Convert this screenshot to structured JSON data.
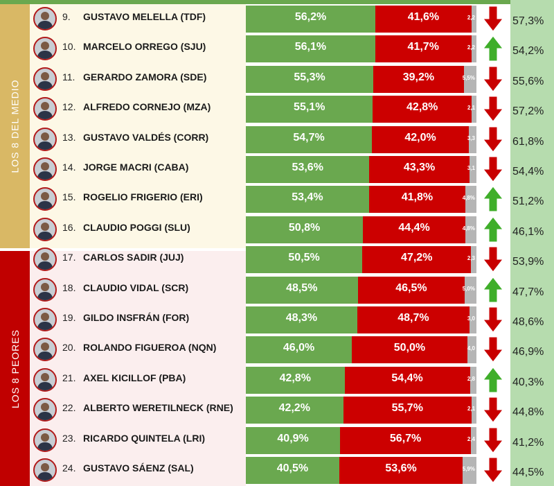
{
  "chart_data": {
    "type": "bar",
    "orientation": "horizontal-stacked",
    "groups": [
      {
        "label": "LOS 8 DEL MEDIO",
        "color": "#d9b865"
      },
      {
        "label": "LOS 8 PEORES",
        "color": "#c00000"
      }
    ],
    "series": [
      {
        "color": "#6aa84f"
      },
      {
        "color": "#cc0000"
      },
      {
        "color": "#b5b5b5"
      }
    ],
    "rows": [
      {
        "rank": "9.",
        "name": "GUSTAVO MELELLA (TDF)",
        "green": 56.2,
        "green_label": "56,2%",
        "red": 41.6,
        "red_label": "41,6%",
        "gray": 2.2,
        "gray_label": "2,2",
        "trend": "down",
        "prev_label": "57,3%",
        "group": 0
      },
      {
        "rank": "10.",
        "name": "MARCELO ORREGO (SJU)",
        "green": 56.1,
        "green_label": "56,1%",
        "red": 41.7,
        "red_label": "41,7%",
        "gray": 2.2,
        "gray_label": "2,2",
        "trend": "up",
        "prev_label": "54,2%",
        "group": 0
      },
      {
        "rank": "11.",
        "name": "GERARDO ZAMORA (SDE)",
        "green": 55.3,
        "green_label": "55,3%",
        "red": 39.2,
        "red_label": "39,2%",
        "gray": 5.5,
        "gray_label": "5,5%",
        "trend": "down",
        "prev_label": "55,6%",
        "group": 0
      },
      {
        "rank": "12.",
        "name": "ALFREDO CORNEJO (MZA)",
        "green": 55.1,
        "green_label": "55,1%",
        "red": 42.8,
        "red_label": "42,8%",
        "gray": 2.1,
        "gray_label": "2,1",
        "trend": "down",
        "prev_label": "57,2%",
        "group": 0
      },
      {
        "rank": "13.",
        "name": "GUSTAVO VALDÉS (CORR)",
        "green": 54.7,
        "green_label": "54,7%",
        "red": 42.0,
        "red_label": "42,0%",
        "gray": 3.3,
        "gray_label": "3,3",
        "trend": "down",
        "prev_label": "61,8%",
        "group": 0
      },
      {
        "rank": "14.",
        "name": "JORGE MACRI (CABA)",
        "green": 53.6,
        "green_label": "53,6%",
        "red": 43.3,
        "red_label": "43,3%",
        "gray": 3.1,
        "gray_label": "3,1",
        "trend": "down",
        "prev_label": "54,4%",
        "group": 0
      },
      {
        "rank": "15.",
        "name": "ROGELIO FRIGERIO (ERI)",
        "green": 53.4,
        "green_label": "53,4%",
        "red": 41.8,
        "red_label": "41,8%",
        "gray": 4.8,
        "gray_label": "4,8%",
        "trend": "up",
        "prev_label": "51,2%",
        "group": 0
      },
      {
        "rank": "16.",
        "name": "CLAUDIO POGGI (SLU)",
        "green": 50.8,
        "green_label": "50,8%",
        "red": 44.4,
        "red_label": "44,4%",
        "gray": 4.8,
        "gray_label": "4,8%",
        "trend": "up",
        "prev_label": "46,1%",
        "group": 0
      },
      {
        "rank": "17.",
        "name": "CARLOS SADIR (JUJ)",
        "green": 50.5,
        "green_label": "50,5%",
        "red": 47.2,
        "red_label": "47,2%",
        "gray": 2.3,
        "gray_label": "2,3",
        "trend": "down",
        "prev_label": "53,9%",
        "group": 1
      },
      {
        "rank": "18.",
        "name": "CLAUDIO VIDAL (SCR)",
        "green": 48.5,
        "green_label": "48,5%",
        "red": 46.5,
        "red_label": "46,5%",
        "gray": 5.0,
        "gray_label": "5,0%",
        "trend": "up",
        "prev_label": "47,7%",
        "group": 1
      },
      {
        "rank": "19.",
        "name": "GILDO INSFRÁN (FOR)",
        "green": 48.3,
        "green_label": "48,3%",
        "red": 48.7,
        "red_label": "48,7%",
        "gray": 3.0,
        "gray_label": "3,0",
        "trend": "down",
        "prev_label": "48,6%",
        "group": 1
      },
      {
        "rank": "20.",
        "name": "ROLANDO FIGUEROA (NQN)",
        "green": 46.0,
        "green_label": "46,0%",
        "red": 50.0,
        "red_label": "50,0%",
        "gray": 4.0,
        "gray_label": "4,0",
        "trend": "down",
        "prev_label": "46,9%",
        "group": 1
      },
      {
        "rank": "21.",
        "name": "AXEL KICILLOF (PBA)",
        "green": 42.8,
        "green_label": "42,8%",
        "red": 54.4,
        "red_label": "54,4%",
        "gray": 2.8,
        "gray_label": "2,8",
        "trend": "up",
        "prev_label": "40,3%",
        "group": 1
      },
      {
        "rank": "22.",
        "name": "ALBERTO WERETILNECK (RNE)",
        "green": 42.2,
        "green_label": "42,2%",
        "red": 55.7,
        "red_label": "55,7%",
        "gray": 2.1,
        "gray_label": "2,1",
        "trend": "down",
        "prev_label": "44,8%",
        "group": 1
      },
      {
        "rank": "23.",
        "name": "RICARDO QUINTELA (LRI)",
        "green": 40.9,
        "green_label": "40,9%",
        "red": 56.7,
        "red_label": "56,7%",
        "gray": 2.4,
        "gray_label": "2,4",
        "trend": "down",
        "prev_label": "41,2%",
        "group": 1
      },
      {
        "rank": "24.",
        "name": "GUSTAVO SÁENZ (SAL)",
        "green": 40.5,
        "green_label": "40,5%",
        "red": 53.6,
        "red_label": "53,6%",
        "gray": 5.9,
        "gray_label": "5,9%",
        "trend": "down",
        "prev_label": "44,5%",
        "group": 1
      }
    ]
  }
}
